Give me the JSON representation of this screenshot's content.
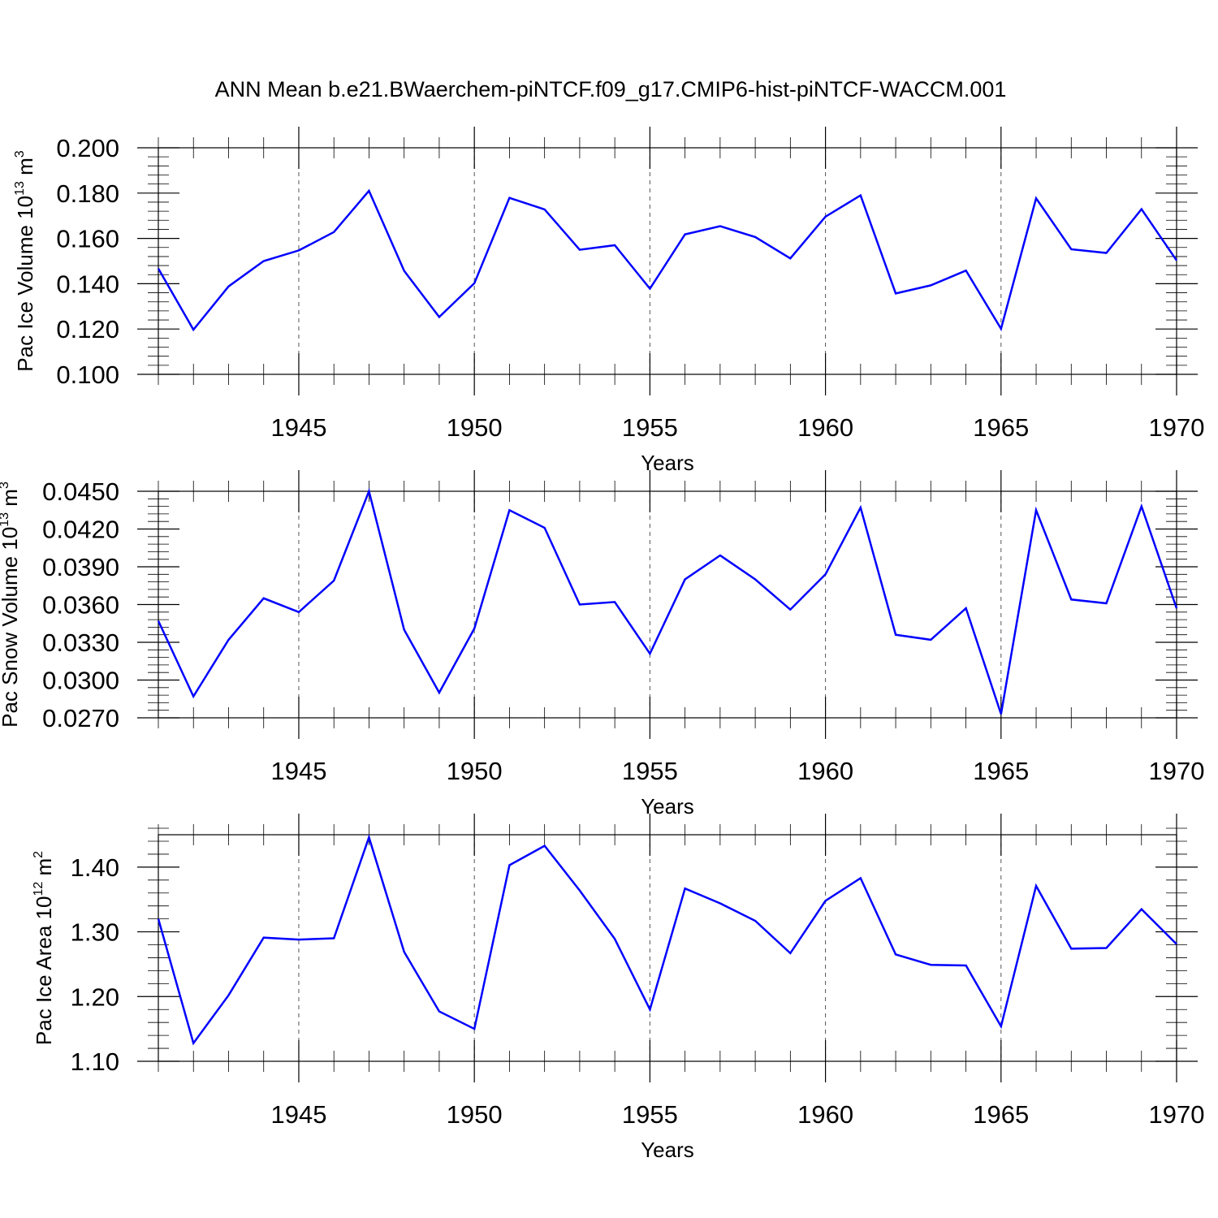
{
  "figure_title": "ANN Mean b.e21.BWaerchem-piNTCF.f09_g17.CMIP6-hist-piNTCF-WACCM.001",
  "colors": {
    "line": "#0000ff",
    "grid": "#555555",
    "axis": "#000000"
  },
  "chart_data": [
    {
      "type": "line",
      "ylabel": "Pac Ice Volume 10",
      "ylabel_exponent": "13",
      "ylabel_unit": "m",
      "ylabel_unit_exponent": "3",
      "xlabel": "Years",
      "xlim": [
        1941,
        1970
      ],
      "ylim": [
        0.1,
        0.2
      ],
      "yticks": [
        0.1,
        0.12,
        0.14,
        0.16,
        0.18,
        0.2
      ],
      "ytick_labels": [
        "0.100",
        "0.120",
        "0.140",
        "0.160",
        "0.180",
        "0.200"
      ],
      "xticks": [
        1945,
        1950,
        1955,
        1960,
        1965,
        1970
      ],
      "xtick_labels": [
        "1945",
        "1950",
        "1955",
        "1960",
        "1965",
        "1970"
      ],
      "grid_x": [
        1945,
        1950,
        1955,
        1960,
        1965
      ],
      "x": [
        1941,
        1942,
        1943,
        1944,
        1945,
        1946,
        1947,
        1948,
        1949,
        1950,
        1951,
        1952,
        1953,
        1954,
        1955,
        1956,
        1957,
        1958,
        1959,
        1960,
        1961,
        1962,
        1963,
        1964,
        1965,
        1966,
        1967,
        1968,
        1969,
        1970
      ],
      "values": [
        0.1467,
        0.1197,
        0.1388,
        0.15,
        0.1547,
        0.1628,
        0.181,
        0.1457,
        0.1253,
        0.1402,
        0.1779,
        0.1728,
        0.155,
        0.157,
        0.1378,
        0.1618,
        0.1654,
        0.1606,
        0.1512,
        0.1696,
        0.179,
        0.1357,
        0.1393,
        0.1458,
        0.1201,
        0.1777,
        0.1552,
        0.1536,
        0.1729,
        0.1503
      ]
    },
    {
      "type": "line",
      "ylabel": "Pac Snow Volume 10",
      "ylabel_exponent": "13",
      "ylabel_unit": "m",
      "ylabel_unit_exponent": "3",
      "xlabel": "Years",
      "xlim": [
        1941,
        1970
      ],
      "ylim": [
        0.027,
        0.045
      ],
      "yticks": [
        0.027,
        0.03,
        0.033,
        0.036,
        0.039,
        0.042,
        0.045
      ],
      "ytick_labels": [
        "0.0270",
        "0.0300",
        "0.0330",
        "0.0360",
        "0.0390",
        "0.0420",
        "0.0450"
      ],
      "xticks": [
        1945,
        1950,
        1955,
        1960,
        1965,
        1970
      ],
      "xtick_labels": [
        "1945",
        "1950",
        "1955",
        "1960",
        "1965",
        "1970"
      ],
      "grid_x": [
        1945,
        1950,
        1955,
        1960,
        1965
      ],
      "x": [
        1941,
        1942,
        1943,
        1944,
        1945,
        1946,
        1947,
        1948,
        1949,
        1950,
        1951,
        1952,
        1953,
        1954,
        1955,
        1956,
        1957,
        1958,
        1959,
        1960,
        1961,
        1962,
        1963,
        1964,
        1965,
        1966,
        1967,
        1968,
        1969,
        1970
      ],
      "values": [
        0.0347,
        0.0287,
        0.0332,
        0.0365,
        0.0354,
        0.0379,
        0.045,
        0.034,
        0.029,
        0.0341,
        0.0435,
        0.0421,
        0.036,
        0.0362,
        0.0321,
        0.038,
        0.0399,
        0.038,
        0.0356,
        0.0384,
        0.0437,
        0.0336,
        0.0332,
        0.0357,
        0.0273,
        0.0435,
        0.0364,
        0.0361,
        0.0438,
        0.0357
      ]
    },
    {
      "type": "line",
      "ylabel": "Pac Ice Area 10",
      "ylabel_exponent": "12",
      "ylabel_unit": "m",
      "ylabel_unit_exponent": "2",
      "xlabel": "Years",
      "xlim": [
        1941,
        1970
      ],
      "ylim": [
        1.1,
        1.45
      ],
      "yticks": [
        1.1,
        1.2,
        1.3,
        1.4
      ],
      "ytick_labels": [
        "1.10",
        "1.20",
        "1.30",
        "1.40"
      ],
      "xticks": [
        1945,
        1950,
        1955,
        1960,
        1965,
        1970
      ],
      "xtick_labels": [
        "1945",
        "1950",
        "1955",
        "1960",
        "1965",
        "1970"
      ],
      "grid_x": [
        1945,
        1950,
        1955,
        1960,
        1965
      ],
      "x": [
        1941,
        1942,
        1943,
        1944,
        1945,
        1946,
        1947,
        1948,
        1949,
        1950,
        1951,
        1952,
        1953,
        1954,
        1955,
        1956,
        1957,
        1958,
        1959,
        1960,
        1961,
        1962,
        1963,
        1964,
        1965,
        1966,
        1967,
        1968,
        1969,
        1970
      ],
      "values": [
        1.32,
        1.128,
        1.202,
        1.291,
        1.288,
        1.29,
        1.446,
        1.269,
        1.177,
        1.15,
        1.403,
        1.433,
        1.364,
        1.289,
        1.18,
        1.367,
        1.344,
        1.317,
        1.267,
        1.348,
        1.383,
        1.265,
        1.249,
        1.248,
        1.154,
        1.371,
        1.274,
        1.275,
        1.335,
        1.281
      ]
    }
  ]
}
